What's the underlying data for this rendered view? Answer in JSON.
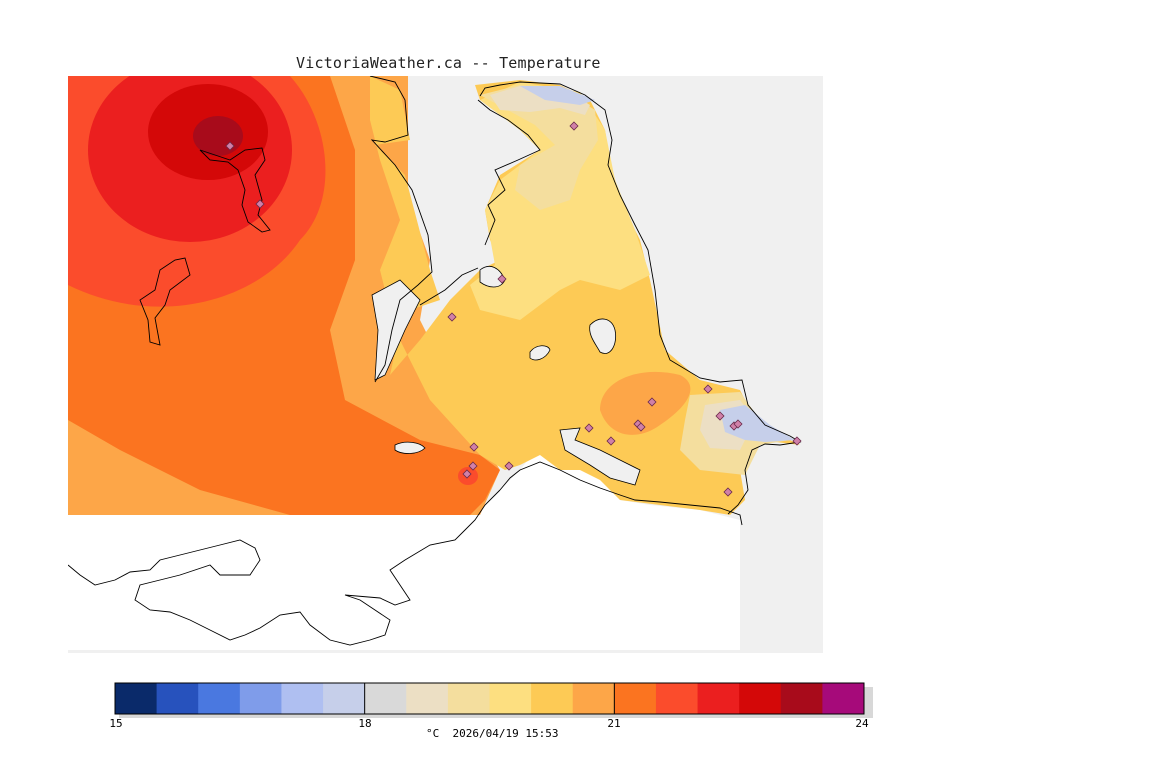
{
  "title": "VictoriaWeather.ca -- Temperature",
  "legend": {
    "colors": [
      "#0a2a6a",
      "#2752bd",
      "#4a78e0",
      "#7f9cea",
      "#afbff1",
      "#c6cfea",
      "#d9d9d9",
      "#ecdfc4",
      "#f4de9e",
      "#fddf80",
      "#fdca55",
      "#fda648",
      "#fb7420",
      "#fb4c2c",
      "#eb1f1f",
      "#d40808",
      "#a80b1b",
      "#a60a7a"
    ],
    "ticks": [
      "15",
      "18",
      "21",
      "24"
    ],
    "units_time": "°C  2026/04/19 15:53"
  },
  "stations": {
    "count": 20,
    "marker_icon": "diamond-icon"
  },
  "colors": {
    "land_outside": "#f0f0f0",
    "water_white": "#ffffff",
    "coast_line": "#000000"
  }
}
